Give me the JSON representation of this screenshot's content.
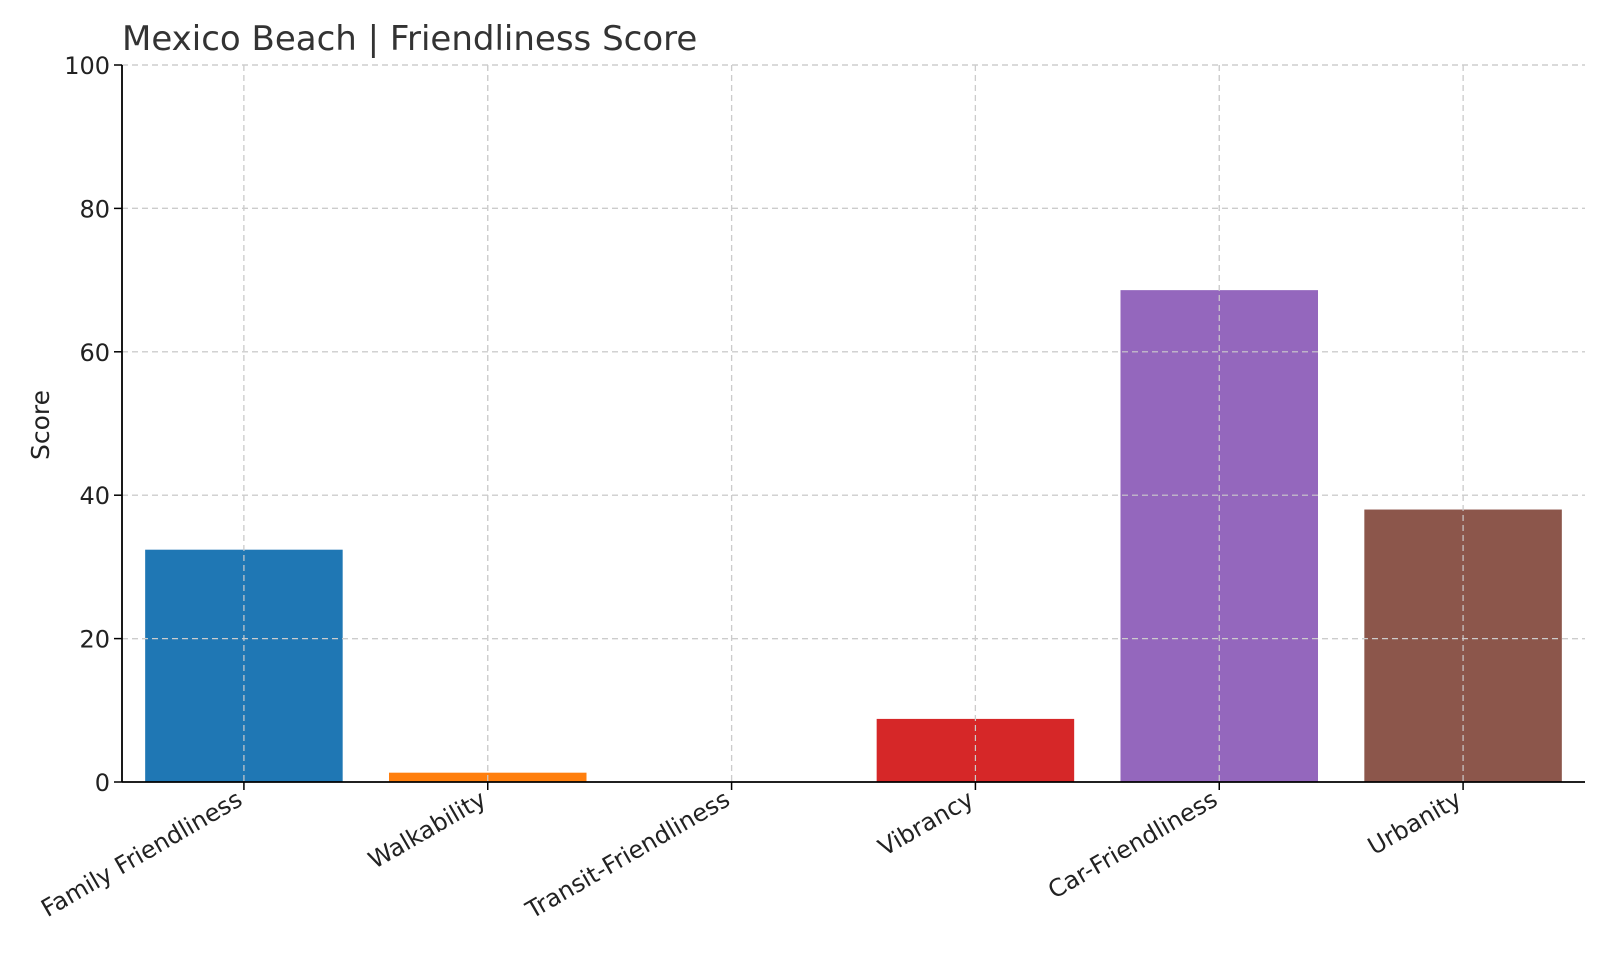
{
  "chart_data": {
    "type": "bar",
    "title": "Mexico Beach |  Friendliness Score",
    "xlabel": "",
    "ylabel": "Score",
    "ylim": [
      0,
      100
    ],
    "yticks": [
      0,
      20,
      40,
      60,
      80,
      100
    ],
    "grid": true,
    "categories": [
      "Family Friendliness",
      "Walkability",
      "Transit-Friendliness",
      "Vibrancy",
      "Car-Friendliness",
      "Urbanity"
    ],
    "values": [
      32.4,
      1.3,
      0,
      8.8,
      68.6,
      38.0
    ],
    "colors": [
      "#1f77b4",
      "#ff7f0e",
      "#2ca02c",
      "#d62728",
      "#9467bd",
      "#8c564b"
    ]
  }
}
